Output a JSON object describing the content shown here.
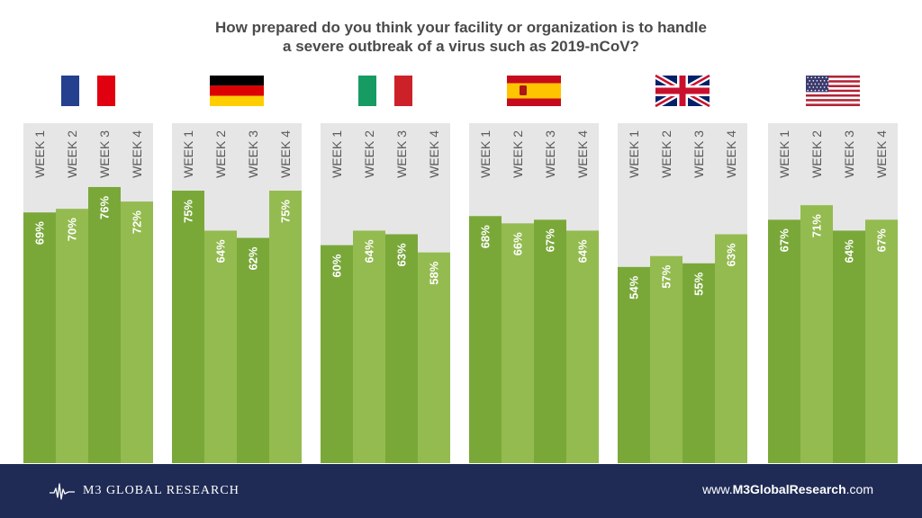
{
  "title_lines": [
    "How prepared do you think your facility or organization is to handle",
    "a severe outbreak of a virus such as 2019-nCoV?"
  ],
  "colors": {
    "panel_bg": "#e6e6e6",
    "bar_dark": "#79a839",
    "bar_light": "#94bb50",
    "label_text": "#5a5a5a",
    "footer_bg": "#1f2b55"
  },
  "chart_data": {
    "type": "bar",
    "title": "How prepared do you think your facility or organization is to handle a severe outbreak of a virus such as 2019-nCoV?",
    "categories": [
      "WEEK 1",
      "WEEK 2",
      "WEEK 3",
      "WEEK 4"
    ],
    "ylim": [
      0,
      100
    ],
    "unit": "%",
    "grid": false,
    "groups": [
      {
        "flag": "france-flag",
        "values": [
          69,
          70,
          76,
          72
        ]
      },
      {
        "flag": "germany-flag",
        "values": [
          75,
          64,
          62,
          75
        ]
      },
      {
        "flag": "italy-flag",
        "values": [
          60,
          64,
          63,
          58
        ]
      },
      {
        "flag": "spain-flag",
        "values": [
          68,
          66,
          67,
          64
        ]
      },
      {
        "flag": "uk-flag",
        "values": [
          54,
          57,
          55,
          63
        ]
      },
      {
        "flag": "usa-flag",
        "values": [
          67,
          71,
          64,
          67
        ]
      }
    ]
  },
  "footer": {
    "brand": "M3  GLOBAL RESEARCH",
    "website_prefix": "www.",
    "website_bold": "M3GlobalResearch",
    "website_suffix": ".com"
  }
}
